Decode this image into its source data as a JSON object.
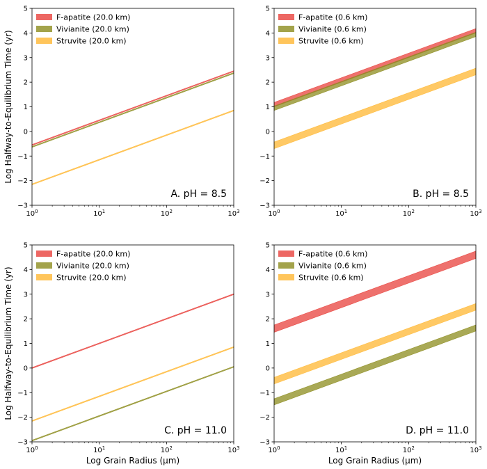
{
  "chart_data": [
    {
      "type": "area",
      "panel_label": "A. pH = 8.5",
      "xlabel": "",
      "ylabel": "Log Halfway-to-Equilibrium Time (yr)",
      "x_scale": "log",
      "xlim": [
        1,
        1000
      ],
      "ylim": [
        -3,
        5
      ],
      "x_ticks": [
        {
          "base": "10",
          "exp": "0"
        },
        {
          "base": "10",
          "exp": "1"
        },
        {
          "base": "10",
          "exp": "2"
        },
        {
          "base": "10",
          "exp": "3"
        }
      ],
      "y_ticks": [
        "−3",
        "−2",
        "−1",
        "0",
        "1",
        "2",
        "3",
        "4",
        "5"
      ],
      "legend_position": "top-left",
      "series": [
        {
          "name": "F-apatite (20.0 km)",
          "color": "#e8413c",
          "x": [
            1,
            1000
          ],
          "lower": [
            -0.57,
            2.43
          ],
          "upper": [
            -0.53,
            2.47
          ]
        },
        {
          "name": "Vivianite (20.0 km)",
          "color": "#8c8c1e",
          "x": [
            1,
            1000
          ],
          "lower": [
            -0.65,
            2.35
          ],
          "upper": [
            -0.61,
            2.39
          ]
        },
        {
          "name": "Struvite (20.0 km)",
          "color": "#ffb732",
          "x": [
            1,
            1000
          ],
          "lower": [
            -2.17,
            0.83
          ],
          "upper": [
            -2.13,
            0.87
          ]
        }
      ]
    },
    {
      "type": "area",
      "panel_label": "B. pH = 8.5",
      "xlabel": "",
      "ylabel": "",
      "x_scale": "log",
      "xlim": [
        1,
        1000
      ],
      "ylim": [
        -3,
        5
      ],
      "x_ticks": [
        {
          "base": "10",
          "exp": "0"
        },
        {
          "base": "10",
          "exp": "1"
        },
        {
          "base": "10",
          "exp": "2"
        },
        {
          "base": "10",
          "exp": "3"
        }
      ],
      "y_ticks": [
        "−3",
        "−2",
        "−1",
        "0",
        "1",
        "2",
        "3",
        "4",
        "5"
      ],
      "legend_position": "top-left",
      "series": [
        {
          "name": "F-apatite (0.6 km)",
          "color": "#e8413c",
          "x": [
            1,
            1000
          ],
          "lower": [
            1.0,
            4.0
          ],
          "upper": [
            1.18,
            4.18
          ]
        },
        {
          "name": "Vivianite (0.6 km)",
          "color": "#8c8c1e",
          "x": [
            1,
            1000
          ],
          "lower": [
            0.85,
            3.85
          ],
          "upper": [
            1.03,
            4.03
          ]
        },
        {
          "name": "Struvite (0.6 km)",
          "color": "#ffb732",
          "x": [
            1,
            1000
          ],
          "lower": [
            -0.7,
            2.3
          ],
          "upper": [
            -0.43,
            2.57
          ]
        }
      ]
    },
    {
      "type": "area",
      "panel_label": "C. pH = 11.0",
      "xlabel": "Log Grain Radius (μm)",
      "ylabel": "Log Halfway-to-Equilibrium Time (yr)",
      "x_scale": "log",
      "xlim": [
        1,
        1000
      ],
      "ylim": [
        -3,
        5
      ],
      "x_ticks": [
        {
          "base": "10",
          "exp": "0"
        },
        {
          "base": "10",
          "exp": "1"
        },
        {
          "base": "10",
          "exp": "2"
        },
        {
          "base": "10",
          "exp": "3"
        }
      ],
      "y_ticks": [
        "−3",
        "−2",
        "−1",
        "0",
        "1",
        "2",
        "3",
        "4",
        "5"
      ],
      "legend_position": "top-left",
      "series": [
        {
          "name": "F-apatite (20.0 km)",
          "color": "#e8413c",
          "x": [
            1,
            1000
          ],
          "lower": [
            -0.02,
            2.98
          ],
          "upper": [
            0.02,
            3.02
          ]
        },
        {
          "name": "Vivianite (20.0 km)",
          "color": "#8c8c1e",
          "x": [
            1,
            1000
          ],
          "lower": [
            -2.97,
            0.03
          ],
          "upper": [
            -2.93,
            0.07
          ]
        },
        {
          "name": "Struvite (20.0 km)",
          "color": "#ffb732",
          "x": [
            1,
            1000
          ],
          "lower": [
            -2.17,
            0.83
          ],
          "upper": [
            -2.13,
            0.87
          ]
        }
      ]
    },
    {
      "type": "area",
      "panel_label": "D. pH = 11.0",
      "xlabel": "Log Grain Radius (μm)",
      "ylabel": "",
      "x_scale": "log",
      "xlim": [
        1,
        1000
      ],
      "ylim": [
        -3,
        5
      ],
      "x_ticks": [
        {
          "base": "10",
          "exp": "0"
        },
        {
          "base": "10",
          "exp": "1"
        },
        {
          "base": "10",
          "exp": "2"
        },
        {
          "base": "10",
          "exp": "3"
        }
      ],
      "y_ticks": [
        "−3",
        "−2",
        "−1",
        "0",
        "1",
        "2",
        "3",
        "4",
        "5"
      ],
      "legend_position": "top-left",
      "series": [
        {
          "name": "F-apatite (0.6 km)",
          "color": "#e8413c",
          "x": [
            1,
            1000
          ],
          "lower": [
            1.45,
            4.45
          ],
          "upper": [
            1.75,
            4.75
          ]
        },
        {
          "name": "Vivianite (0.6 km)",
          "color": "#8c8c1e",
          "x": [
            1,
            1000
          ],
          "lower": [
            -1.5,
            1.5
          ],
          "upper": [
            -1.25,
            1.75
          ]
        },
        {
          "name": "Struvite (0.6 km)",
          "color": "#ffb732",
          "x": [
            1,
            1000
          ],
          "lower": [
            -0.65,
            2.35
          ],
          "upper": [
            -0.38,
            2.62
          ]
        }
      ]
    }
  ]
}
